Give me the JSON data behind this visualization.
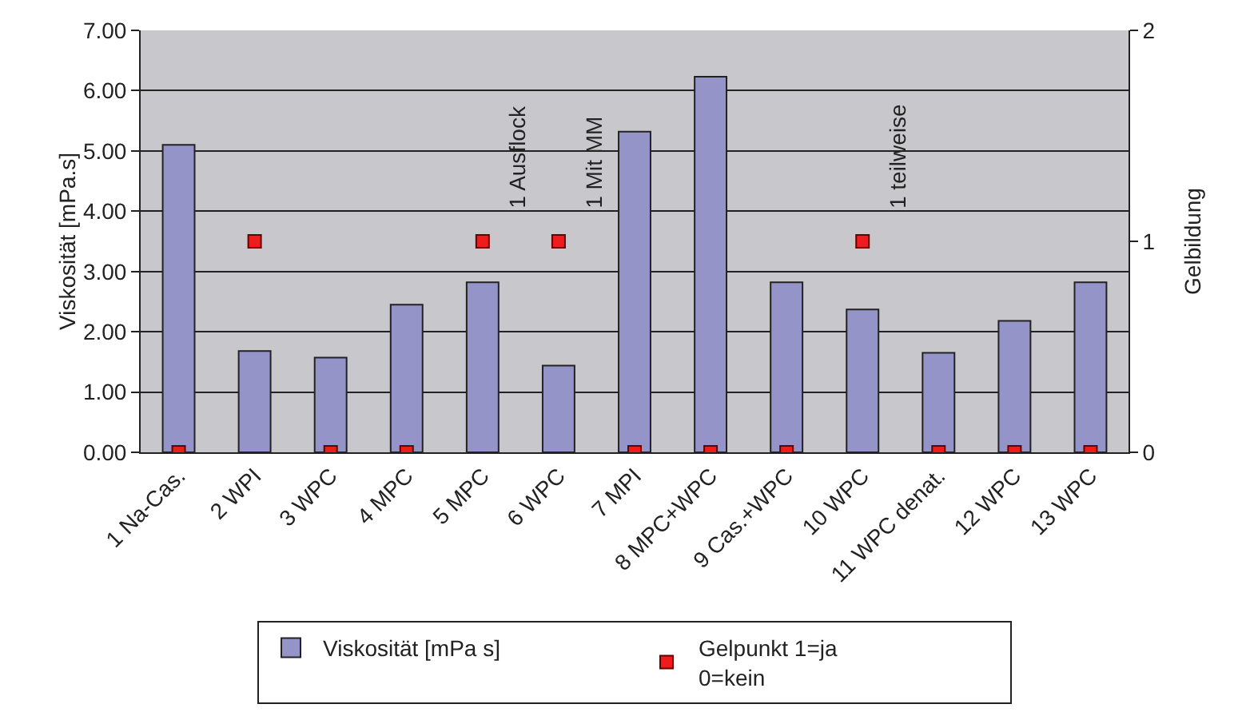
{
  "chart_data": {
    "type": "bar",
    "ylabel": "Viskosität [mPa.s]",
    "y2label": "Gelbildung",
    "categories": [
      "1 Na-Cas.",
      "2 WPI",
      "3 WPC",
      "4 MPC",
      "5 MPC",
      "6 WPC",
      "7 MPI",
      "8 MPC+WPC",
      "9 Cas.+WPC",
      "10 WPC",
      "11 WPC denat.",
      "12 WPC",
      "13 WPC"
    ],
    "series": [
      {
        "name": "Viskosität [mPa s]",
        "color": "#9494c8",
        "values": [
          5.1,
          1.68,
          1.57,
          2.45,
          2.82,
          1.44,
          5.32,
          6.23,
          2.82,
          2.37,
          1.65,
          2.18,
          2.82
        ]
      },
      {
        "name": "Gelpunkt 1=ja\n0=kein",
        "type": "scatter",
        "axis": "y2",
        "marker": "square",
        "color": "#ee1c1c",
        "values": [
          0,
          1,
          0,
          0,
          1,
          1,
          0,
          0,
          0,
          1,
          0,
          0,
          0
        ]
      }
    ],
    "ylim": [
      0,
      7
    ],
    "yticks": [
      {
        "value": 0,
        "label": "0.00"
      },
      {
        "value": 1,
        "label": "1.00"
      },
      {
        "value": 2,
        "label": "2.00"
      },
      {
        "value": 3,
        "label": "3.00"
      },
      {
        "value": 4,
        "label": "4.00"
      },
      {
        "value": 5,
        "label": "5.00"
      },
      {
        "value": 6,
        "label": "6.00"
      },
      {
        "value": 7,
        "label": "7.00"
      }
    ],
    "y2lim": [
      0,
      2
    ],
    "y2ticks": [
      0,
      1,
      2
    ],
    "annotations": [
      "1 Ausflock",
      "1 Mit MM",
      "1 teilweise"
    ],
    "grid": "y",
    "legend": "bottom"
  }
}
